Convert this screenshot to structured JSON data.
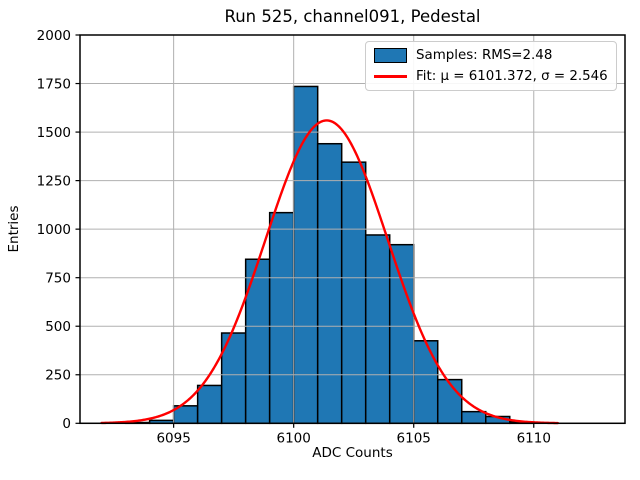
{
  "chart_data": {
    "type": "bar",
    "subtype": "histogram-with-gaussian-fit",
    "title": "Run 525, channel091, Pedestal",
    "xlabel": "ADC Counts",
    "ylabel": "Entries",
    "xlim": [
      6091.1,
      6113.8
    ],
    "ylim": [
      0,
      2000
    ],
    "x_ticks": [
      6095,
      6100,
      6105,
      6110
    ],
    "y_ticks": [
      0,
      250,
      500,
      750,
      1000,
      1250,
      1500,
      1750,
      2000
    ],
    "grid": true,
    "grid_color": "#b0b0b0",
    "bar_color": "#1f77b4",
    "bar_edge_color": "#000000",
    "bin_width": 1,
    "bin_edges": [
      6093,
      6094,
      6095,
      6096,
      6097,
      6098,
      6099,
      6100,
      6101,
      6102,
      6103,
      6104,
      6105,
      6106,
      6107,
      6108,
      6109,
      6110
    ],
    "counts": [
      4,
      15,
      90,
      195,
      465,
      845,
      1085,
      1735,
      1440,
      1345,
      970,
      920,
      425,
      225,
      60,
      35,
      8
    ],
    "fit": {
      "shape": "gaussian",
      "mu": 6101.372,
      "sigma": 2.546,
      "amplitude": 1560,
      "color": "#ff0000",
      "x_range": [
        6092,
        6111
      ]
    },
    "legend_position": "upper right",
    "legend_entries": [
      {
        "swatch": "patch",
        "color": "#1f77b4",
        "label": "Samples: RMS=2.48"
      },
      {
        "swatch": "line",
        "color": "#ff0000",
        "label": "Fit: μ = 6101.372, σ = 2.546"
      }
    ]
  }
}
